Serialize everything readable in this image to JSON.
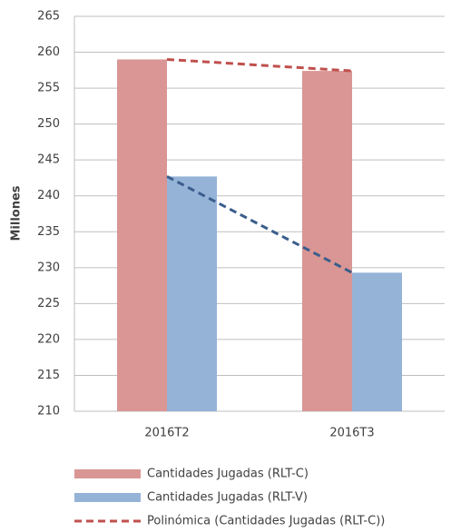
{
  "chart_data": {
    "type": "bar",
    "y_label": "Millones",
    "categories": [
      "2016T2",
      "2016T3"
    ],
    "series": [
      {
        "name": "Cantidades Jugadas  (RLT-C)",
        "color": "#d99694",
        "values": [
          259,
          257.4
        ]
      },
      {
        "name": "Cantidades Jugadas  (RLT-V)",
        "color": "#95b3d7",
        "values": [
          242.7,
          229.3
        ]
      }
    ],
    "trendlines": [
      {
        "name": "Polinómica (Cantidades Jugadas  (RLT-C))",
        "series": 0,
        "color": "#c0504d"
      },
      {
        "series": 1,
        "color": "#3b5e8c"
      }
    ],
    "ylim": [
      210,
      265
    ],
    "yticks": [
      210,
      215,
      220,
      225,
      230,
      235,
      240,
      245,
      250,
      255,
      260,
      265
    ],
    "grid": true
  }
}
